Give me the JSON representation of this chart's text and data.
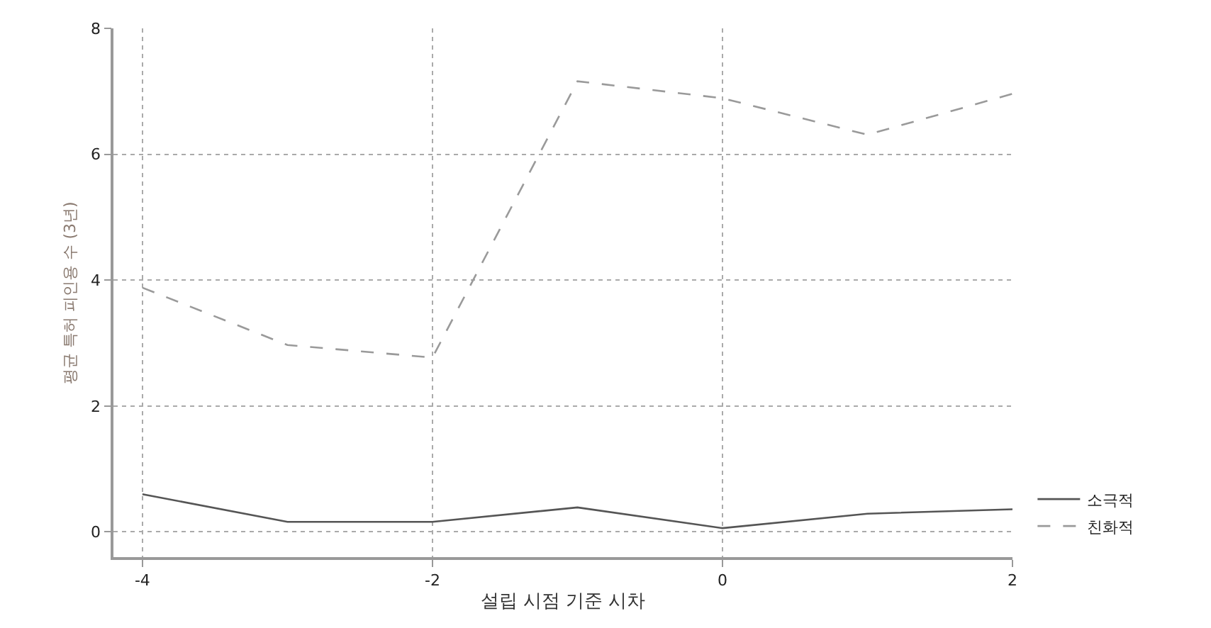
{
  "chart_data": {
    "type": "line",
    "xlabel": "설립 시점 기준 시차",
    "ylabel": "평균 특허 피인용 수 (3년)",
    "x": [
      -4,
      -3,
      -2,
      -1,
      0,
      1,
      2
    ],
    "series": [
      {
        "name": "소극적",
        "color": "#555555",
        "line_style": "solid",
        "values": [
          0.6,
          0.16,
          0.16,
          0.39,
          0.06,
          0.29,
          0.36
        ]
      },
      {
        "name": "친화적",
        "color": "#9a9a9a",
        "line_style": "dashed",
        "values": [
          3.88,
          2.97,
          2.77,
          7.16,
          6.89,
          6.31,
          6.96
        ]
      }
    ],
    "xlim": [
      -4.2,
      2
    ],
    "ylim": [
      -0.4,
      8
    ],
    "xticks": [
      -4,
      -2,
      0,
      2
    ],
    "yticks": [
      0,
      2,
      4,
      6,
      8
    ],
    "grid": true,
    "legend": "bottom right",
    "marker": "none"
  }
}
